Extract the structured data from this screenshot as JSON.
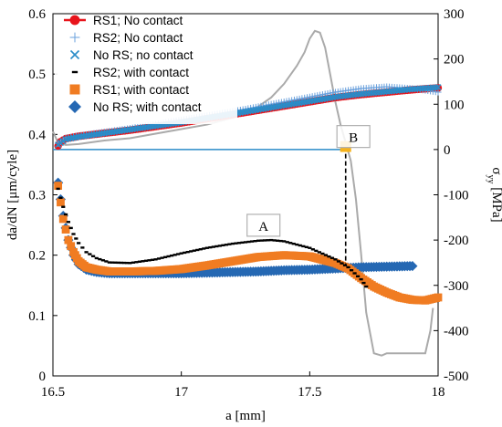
{
  "chart_data": {
    "type": "line",
    "xlabel": "a [mm]",
    "ylabel": "da/dN [μm/cyle]",
    "y2label_main": "σ",
    "y2label_sub": "yy",
    "y2label_tail": " [MPa]",
    "xlim": [
      16.5,
      18
    ],
    "ylim": [
      0,
      0.6
    ],
    "y2lim": [
      -500,
      300
    ],
    "xticks": [
      "16.5",
      "17",
      "17.5",
      "18"
    ],
    "yticks": [
      "0",
      "0.1",
      "0.2",
      "0.3",
      "0.4",
      "0.5",
      "0.6"
    ],
    "y2ticks": [
      "-500",
      "-400",
      "-300",
      "-200",
      "-100",
      "0",
      "100",
      "200",
      "300"
    ],
    "grid": false,
    "legend_position": "top-left",
    "series": [
      {
        "name": "RS1; No contact",
        "color": "#e8141b",
        "marker": "circle",
        "axis": "left",
        "x": [
          16.52,
          16.53,
          16.55,
          16.6,
          16.7,
          16.8,
          16.9,
          17.0,
          17.1,
          17.2,
          17.3,
          17.4,
          17.5,
          17.6,
          17.7,
          17.8,
          17.9,
          18.0
        ],
        "y": [
          0.381,
          0.388,
          0.393,
          0.397,
          0.402,
          0.407,
          0.413,
          0.419,
          0.426,
          0.433,
          0.44,
          0.447,
          0.454,
          0.461,
          0.466,
          0.47,
          0.474,
          0.477
        ]
      },
      {
        "name": "RS2; No contact",
        "color": "#6aa0dc",
        "marker": "plus",
        "axis": "left",
        "x": [
          16.52,
          16.55,
          16.6,
          16.7,
          16.8,
          16.9,
          17.0,
          17.1,
          17.2,
          17.3,
          17.4,
          17.5,
          17.6,
          17.7,
          17.8,
          17.9,
          18.0
        ],
        "y": [
          0.385,
          0.394,
          0.398,
          0.404,
          0.41,
          0.417,
          0.424,
          0.431,
          0.438,
          0.446,
          0.454,
          0.462,
          0.47,
          0.476,
          0.479,
          0.476,
          0.47
        ]
      },
      {
        "name": "No RS; no contact",
        "color": "#2a8cc8",
        "marker": "cross",
        "axis": "left",
        "x": [
          16.52,
          16.55,
          16.6,
          16.7,
          16.8,
          16.9,
          17.0,
          17.1,
          17.2,
          17.3,
          17.4,
          17.5,
          17.6,
          17.7,
          17.8,
          17.9,
          18.0
        ],
        "y": [
          0.383,
          0.392,
          0.396,
          0.402,
          0.408,
          0.414,
          0.42,
          0.427,
          0.434,
          0.441,
          0.448,
          0.455,
          0.462,
          0.467,
          0.471,
          0.475,
          0.478
        ]
      },
      {
        "name": "RS2; with contact",
        "color": "#000000",
        "marker": "dash",
        "axis": "left",
        "x": [
          16.52,
          16.54,
          16.56,
          16.58,
          16.6,
          16.63,
          16.67,
          16.72,
          16.8,
          16.9,
          17.0,
          17.1,
          17.2,
          17.3,
          17.35,
          17.4,
          17.5,
          17.6,
          17.65,
          17.7,
          17.72
        ],
        "y": [
          0.31,
          0.28,
          0.255,
          0.235,
          0.22,
          0.205,
          0.195,
          0.188,
          0.187,
          0.193,
          0.203,
          0.212,
          0.219,
          0.224,
          0.225,
          0.223,
          0.212,
          0.193,
          0.18,
          0.16,
          0.148
        ]
      },
      {
        "name": "RS1; with contact",
        "color": "#f07c22",
        "marker": "square",
        "axis": "left",
        "x": [
          16.52,
          16.54,
          16.56,
          16.58,
          16.6,
          16.63,
          16.67,
          16.72,
          16.8,
          16.9,
          17.0,
          17.1,
          17.2,
          17.3,
          17.4,
          17.5,
          17.6,
          17.65,
          17.7,
          17.75,
          17.8,
          17.85,
          17.9,
          17.95,
          18.0
        ],
        "y": [
          0.315,
          0.26,
          0.225,
          0.205,
          0.19,
          0.18,
          0.176,
          0.173,
          0.173,
          0.174,
          0.177,
          0.183,
          0.19,
          0.197,
          0.2,
          0.198,
          0.187,
          0.178,
          0.162,
          0.148,
          0.138,
          0.13,
          0.126,
          0.125,
          0.13
        ]
      },
      {
        "name": "No RS; with contact",
        "color": "#2568b3",
        "marker": "diamond",
        "axis": "left",
        "x": [
          16.52,
          16.54,
          16.56,
          16.58,
          16.6,
          16.63,
          16.67,
          16.72,
          16.8,
          16.9,
          17.0,
          17.1,
          17.2,
          17.3,
          17.4,
          17.5,
          17.6,
          17.7,
          17.8,
          17.9
        ],
        "y": [
          0.32,
          0.265,
          0.225,
          0.2,
          0.185,
          0.176,
          0.172,
          0.17,
          0.17,
          0.17,
          0.17,
          0.171,
          0.172,
          0.173,
          0.175,
          0.176,
          0.178,
          0.18,
          0.181,
          0.182
        ]
      },
      {
        "name": "",
        "color": "#aaaaaa",
        "marker": "none",
        "axis": "right",
        "x": [
          16.5,
          16.52,
          16.55,
          16.6,
          16.7,
          16.8,
          16.9,
          17.0,
          17.1,
          17.2,
          17.3,
          17.35,
          17.4,
          17.45,
          17.48,
          17.5,
          17.52,
          17.54,
          17.56,
          17.58,
          17.6,
          17.62,
          17.64,
          17.66,
          17.68,
          17.7,
          17.72,
          17.75,
          17.78,
          17.8,
          17.85,
          17.9,
          17.95,
          17.97,
          17.98
        ],
        "y": [
          40,
          15,
          10,
          12,
          20,
          25,
          35,
          45,
          55,
          70,
          95,
          115,
          145,
          185,
          215,
          245,
          262,
          258,
          225,
          165,
          105,
          55,
          15,
          -25,
          -110,
          -230,
          -360,
          -450,
          -455,
          -450,
          -450,
          -450,
          -450,
          -400,
          -350
        ]
      }
    ],
    "reference_line": {
      "axis": "right",
      "x": [
        16.5,
        17.66
      ],
      "y": 0,
      "color": "#2a8cc8"
    },
    "vertical_drop": {
      "axis": "left",
      "x": 17.64,
      "y": [
        0.38,
        0.185
      ],
      "color": "#000000"
    },
    "marker_B": {
      "x": 17.64,
      "y": 0.38,
      "color": "#f5b21c"
    },
    "annotations": [
      {
        "label": "A",
        "x": 17.32,
        "y": 0.248
      },
      {
        "label": "B",
        "x": 17.67,
        "y": 0.395
      }
    ]
  }
}
